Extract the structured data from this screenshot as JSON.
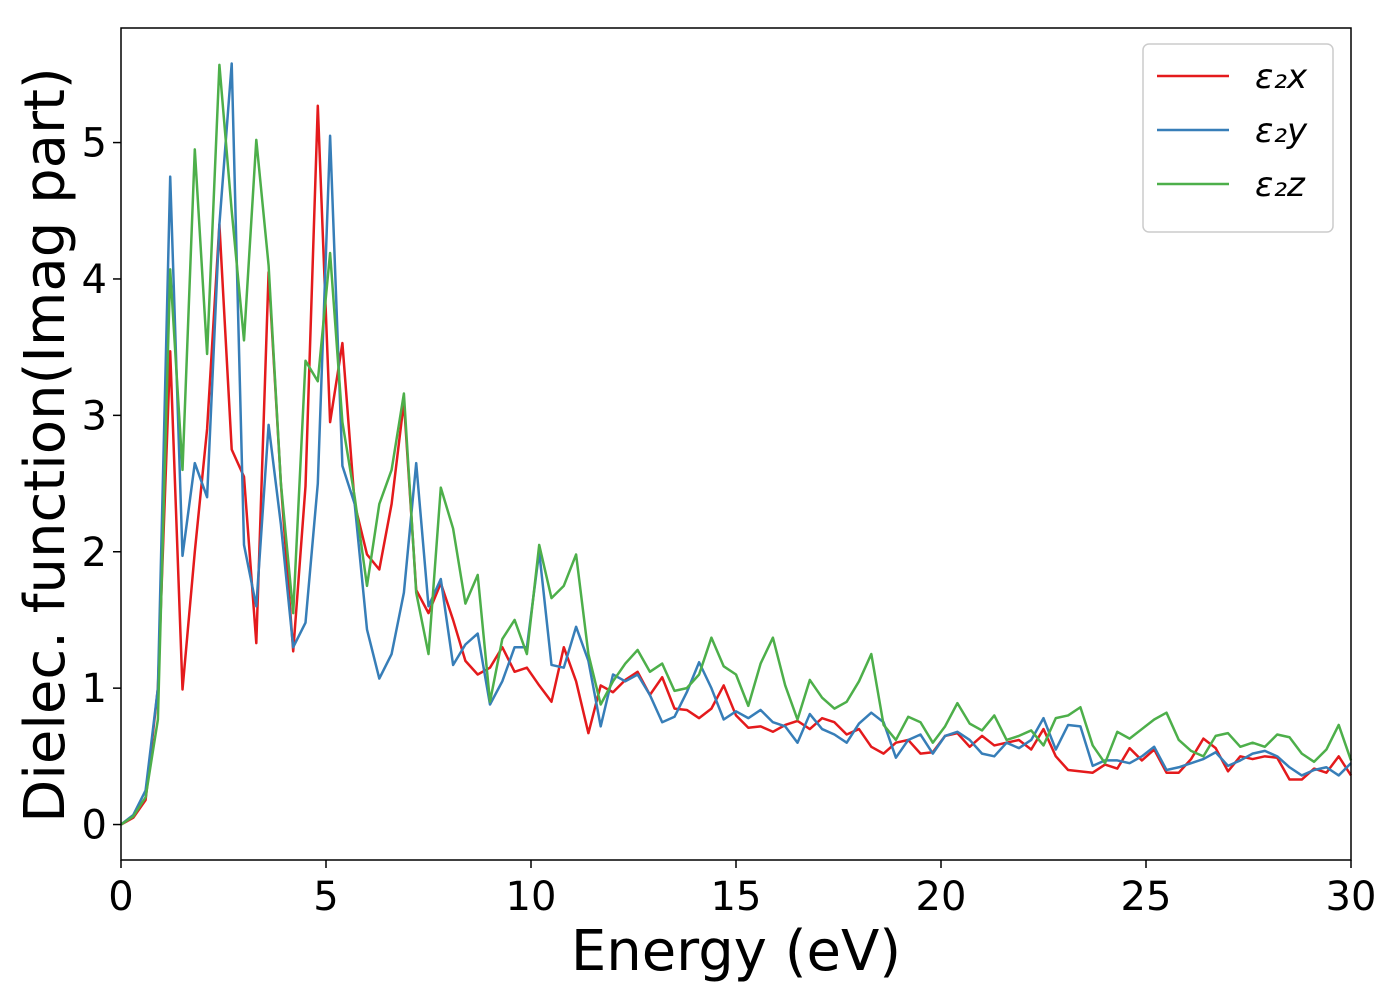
{
  "chart_data": {
    "type": "line",
    "xlabel": "Energy (eV)",
    "ylabel": "Dielec. function(Imag part)",
    "xlim": [
      0,
      30
    ],
    "ylim": [
      -0.26,
      5.84
    ],
    "xticks": [
      0,
      5,
      10,
      15,
      20,
      25,
      30
    ],
    "yticks": [
      0,
      1,
      2,
      3,
      4,
      5
    ],
    "legend": "upper right",
    "grid": false,
    "x": [
      0,
      0.3,
      0.6,
      0.9,
      1.2,
      1.5,
      1.8,
      2.1,
      2.4,
      2.7,
      3,
      3.3,
      3.6,
      3.9,
      4.2,
      4.5,
      4.8,
      5.1,
      5.4,
      5.7,
      6,
      6.3,
      6.6,
      6.9,
      7.2,
      7.5,
      7.8,
      8.1,
      8.4,
      8.7,
      9,
      9.3,
      9.6,
      9.9,
      10.2,
      10.5,
      10.8,
      11.1,
      11.4,
      11.7,
      12,
      12.3,
      12.6,
      12.9,
      13.2,
      13.5,
      13.8,
      14.1,
      14.4,
      14.7,
      15,
      15.3,
      15.6,
      15.9,
      16.2,
      16.5,
      16.8,
      17.1,
      17.4,
      17.7,
      18,
      18.3,
      18.6,
      18.9,
      19.2,
      19.5,
      19.8,
      20.1,
      20.4,
      20.7,
      21,
      21.3,
      21.6,
      21.9,
      22.2,
      22.5,
      22.8,
      23.1,
      23.4,
      23.7,
      24,
      24.3,
      24.6,
      24.9,
      25.2,
      25.5,
      25.8,
      26.1,
      26.4,
      26.7,
      27,
      27.3,
      27.6,
      27.9,
      28.2,
      28.5,
      28.8,
      29.1,
      29.4,
      29.7,
      30
    ],
    "series": [
      {
        "name": "ε₂x",
        "color": "#e41a1c",
        "values": [
          0,
          0.05,
          0.18,
          1.0,
          3.47,
          0.99,
          2.0,
          2.9,
          4.4,
          2.75,
          2.55,
          1.33,
          4.05,
          2.5,
          1.27,
          2.48,
          5.27,
          2.95,
          3.53,
          2.35,
          1.98,
          1.87,
          2.35,
          3.1,
          1.72,
          1.55,
          1.77,
          1.5,
          1.2,
          1.1,
          1.15,
          1.3,
          1.12,
          1.15,
          1.02,
          0.9,
          1.3,
          1.05,
          0.67,
          1.02,
          0.97,
          1.06,
          1.12,
          0.95,
          1.08,
          0.85,
          0.84,
          0.78,
          0.85,
          1.02,
          0.8,
          0.71,
          0.72,
          0.68,
          0.73,
          0.76,
          0.7,
          0.78,
          0.75,
          0.66,
          0.7,
          0.57,
          0.52,
          0.6,
          0.62,
          0.52,
          0.53,
          0.65,
          0.67,
          0.57,
          0.65,
          0.58,
          0.6,
          0.62,
          0.55,
          0.7,
          0.5,
          0.4,
          0.39,
          0.38,
          0.44,
          0.41,
          0.56,
          0.47,
          0.55,
          0.38,
          0.38,
          0.48,
          0.63,
          0.56,
          0.39,
          0.5,
          0.48,
          0.5,
          0.49,
          0.33,
          0.33,
          0.41,
          0.38,
          0.5,
          0.36
        ]
      },
      {
        "name": "ε₂y",
        "color": "#377eb8",
        "values": [
          0,
          0.07,
          0.25,
          1.0,
          4.75,
          1.97,
          2.65,
          2.4,
          4.4,
          5.58,
          2.05,
          1.6,
          2.93,
          2.2,
          1.3,
          1.48,
          2.5,
          5.05,
          2.63,
          2.35,
          1.43,
          1.07,
          1.25,
          1.7,
          2.65,
          1.6,
          1.8,
          1.17,
          1.32,
          1.4,
          0.88,
          1.05,
          1.3,
          1.3,
          2.0,
          1.17,
          1.15,
          1.45,
          1.2,
          0.72,
          1.1,
          1.05,
          1.1,
          0.95,
          0.75,
          0.79,
          0.97,
          1.19,
          1.0,
          0.77,
          0.83,
          0.78,
          0.84,
          0.75,
          0.72,
          0.6,
          0.81,
          0.7,
          0.66,
          0.6,
          0.74,
          0.82,
          0.75,
          0.49,
          0.62,
          0.66,
          0.52,
          0.65,
          0.68,
          0.62,
          0.52,
          0.5,
          0.6,
          0.56,
          0.62,
          0.78,
          0.55,
          0.73,
          0.72,
          0.43,
          0.47,
          0.47,
          0.45,
          0.5,
          0.57,
          0.4,
          0.42,
          0.45,
          0.48,
          0.53,
          0.43,
          0.47,
          0.52,
          0.54,
          0.5,
          0.42,
          0.36,
          0.4,
          0.42,
          0.36,
          0.45
        ]
      },
      {
        "name": "ε₂z",
        "color": "#4daf4a",
        "values": [
          0,
          0.06,
          0.2,
          0.77,
          4.07,
          2.6,
          4.95,
          3.45,
          5.57,
          4.5,
          3.55,
          5.02,
          4.1,
          2.5,
          1.55,
          3.4,
          3.25,
          4.19,
          2.95,
          2.4,
          1.75,
          2.35,
          2.6,
          3.16,
          1.7,
          1.25,
          2.47,
          2.17,
          1.62,
          1.83,
          0.9,
          1.36,
          1.5,
          1.25,
          2.05,
          1.66,
          1.75,
          1.98,
          1.25,
          0.88,
          1.05,
          1.18,
          1.28,
          1.12,
          1.18,
          0.98,
          1.0,
          1.1,
          1.37,
          1.16,
          1.1,
          0.87,
          1.18,
          1.37,
          1.02,
          0.77,
          1.06,
          0.93,
          0.85,
          0.9,
          1.05,
          1.25,
          0.73,
          0.62,
          0.79,
          0.75,
          0.6,
          0.72,
          0.89,
          0.74,
          0.69,
          0.8,
          0.62,
          0.65,
          0.69,
          0.58,
          0.78,
          0.8,
          0.86,
          0.58,
          0.45,
          0.68,
          0.63,
          0.7,
          0.77,
          0.82,
          0.62,
          0.54,
          0.5,
          0.65,
          0.67,
          0.57,
          0.6,
          0.57,
          0.66,
          0.64,
          0.52,
          0.46,
          0.55,
          0.73,
          0.47
        ]
      }
    ]
  }
}
